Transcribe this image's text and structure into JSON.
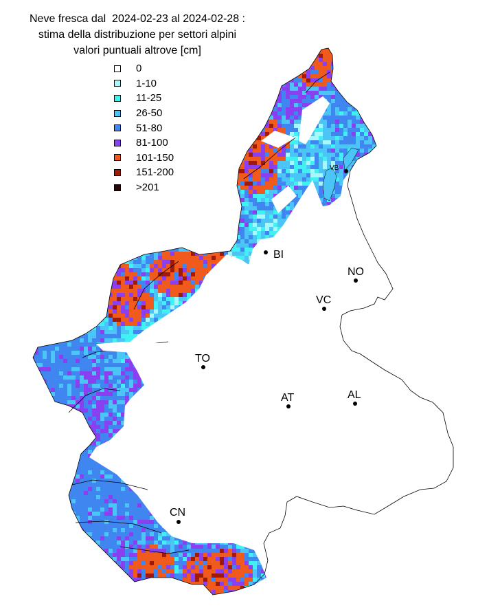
{
  "title_lines": [
    "Neve fresca dal  2024-02-23 al 2024-02-28 :",
    "stima della distribuzione per settori alpini",
    "valori puntuali altrove [cm]"
  ],
  "legend": [
    {
      "label": "0",
      "color": "#ffffff"
    },
    {
      "label": "1-10",
      "color": "#a8f7fb"
    },
    {
      "label": "11-25",
      "color": "#40f0f2"
    },
    {
      "label": "26-50",
      "color": "#4ac5f5"
    },
    {
      "label": "51-80",
      "color": "#3f86f0"
    },
    {
      "label": "81-100",
      "color": "#8a3ff0"
    },
    {
      "label": "101-150",
      "color": "#f05a1c"
    },
    {
      "label": "151-200",
      "color": "#a01a0a"
    },
    {
      "label": ">201",
      "color": "#2a0606"
    }
  ],
  "cities": [
    {
      "code": "VB"
    },
    {
      "code": "BI"
    },
    {
      "code": "NO"
    },
    {
      "code": "VC"
    },
    {
      "code": "TO"
    },
    {
      "code": "AT"
    },
    {
      "code": "AL"
    },
    {
      "code": "CN"
    }
  ]
}
